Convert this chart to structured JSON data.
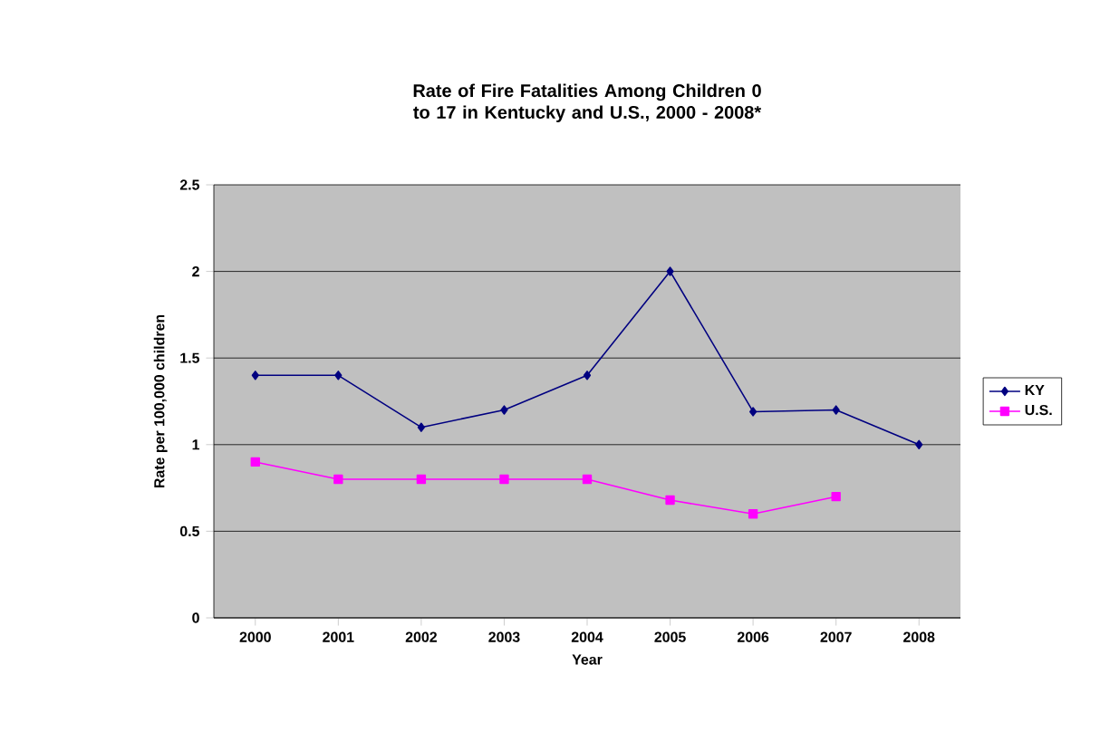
{
  "chart_data": {
    "type": "line",
    "title": "Rate of Fire Fatalities Among Children 0 to 17 in Kentucky and U.S., 2000 - 2008*",
    "xlabel": "Year",
    "ylabel": "Rate per 100,000 children",
    "categories": [
      "2000",
      "2001",
      "2002",
      "2003",
      "2004",
      "2005",
      "2006",
      "2007",
      "2008"
    ],
    "series": [
      {
        "name": "KY",
        "color": "#000080",
        "marker": "diamond",
        "values": [
          1.4,
          1.4,
          1.1,
          1.2,
          1.4,
          2.0,
          1.19,
          1.2,
          1.0
        ]
      },
      {
        "name": "U.S.",
        "color": "#ff00ff",
        "marker": "square",
        "values": [
          0.9,
          0.8,
          0.8,
          0.8,
          0.8,
          0.68,
          0.6,
          0.7,
          null
        ]
      }
    ],
    "ylim": [
      0,
      2.5
    ],
    "yticks": [
      0,
      0.5,
      1,
      1.5,
      2,
      2.5
    ],
    "grid": "y",
    "legend": "right",
    "line_style": "solid"
  }
}
